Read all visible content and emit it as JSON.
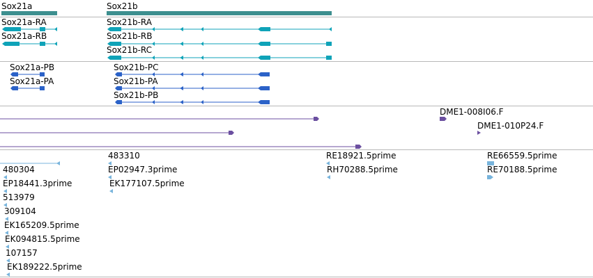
{
  "colors": {
    "gene": "#3d8f8f",
    "transcript": "#0fa3b8",
    "protein": "#2b62c8",
    "clone": "#6b4fa0",
    "est": "#78b4dc",
    "separator": "#b8b8b8"
  },
  "tracks": {
    "genes": [
      {
        "label": "Sox21a"
      },
      {
        "label": "Sox21b"
      }
    ],
    "transcripts": [
      {
        "label": "Sox21a-RA"
      },
      {
        "label": "Sox21a-RB"
      },
      {
        "label": "Sox21b-RA"
      },
      {
        "label": "Sox21b-RB"
      },
      {
        "label": "Sox21b-RC"
      }
    ],
    "proteins": [
      {
        "label": "Sox21a-PB"
      },
      {
        "label": "Sox21a-PA"
      },
      {
        "label": "Sox21b-PC"
      },
      {
        "label": "Sox21b-PA"
      },
      {
        "label": "Sox21b-PB"
      }
    ],
    "clones": [
      {
        "label": "DME1-008I06.F"
      },
      {
        "label": "DME1-010P24.F"
      }
    ],
    "ests": [
      {
        "label": "480304"
      },
      {
        "label": "EP18441.3prime"
      },
      {
        "label": "513979"
      },
      {
        "label": "309104"
      },
      {
        "label": "EK165209.5prime"
      },
      {
        "label": "EK094815.5prime"
      },
      {
        "label": "107157"
      },
      {
        "label": "EK189222.5prime"
      },
      {
        "label": "483310"
      },
      {
        "label": "EP02947.3prime"
      },
      {
        "label": "EK177107.5prime"
      },
      {
        "label": "RE18921.5prime"
      },
      {
        "label": "RH70288.5prime"
      },
      {
        "label": "RE66559.5prime"
      },
      {
        "label": "RE70188.5prime"
      }
    ]
  }
}
